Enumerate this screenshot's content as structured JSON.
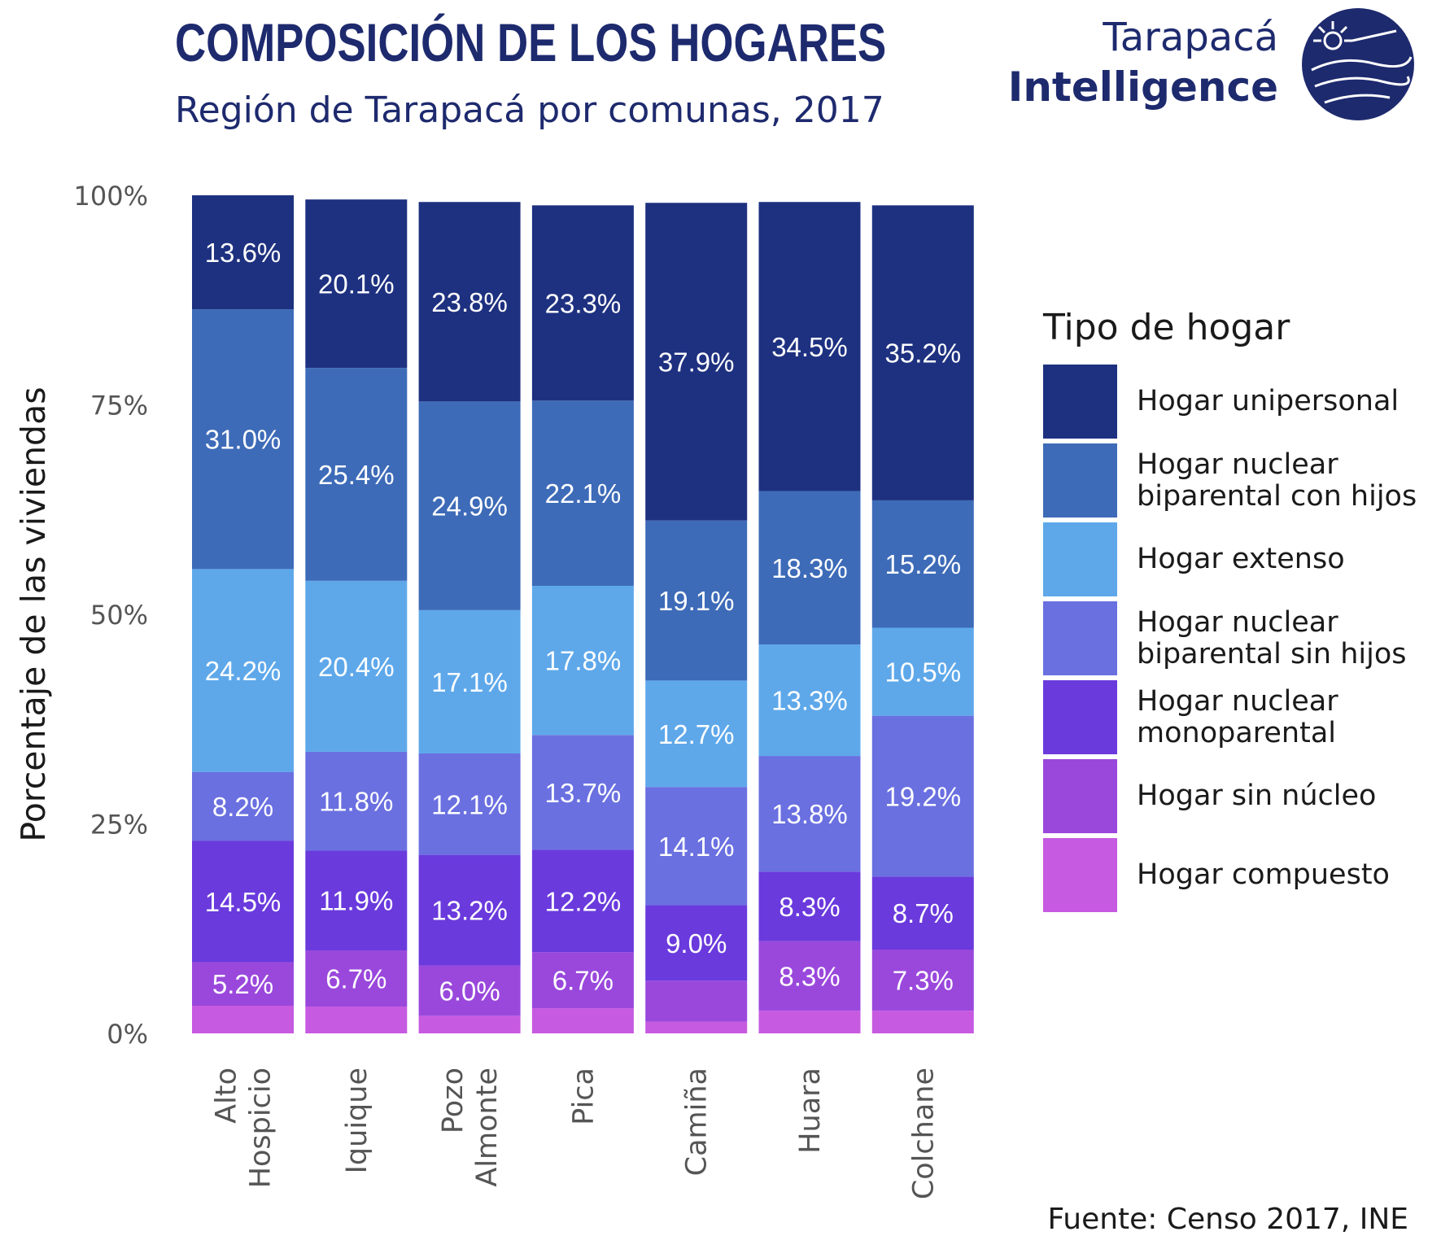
{
  "header": {
    "title": "COMPOSICIÓN DE LOS HOGARES",
    "subtitle": "Región de Tarapacá por comunas, 2017"
  },
  "brand": {
    "line1": "Tarapacá",
    "line2": "Intelligence",
    "color": "#1e2a6e"
  },
  "source": "Fuente: Censo 2017, INE",
  "legend": {
    "title": "Tipo de hogar",
    "items": [
      {
        "label": "Hogar unipersonal",
        "color": "#1e3180"
      },
      {
        "label": "Hogar nuclear\nbiparental con hijos",
        "color": "#3d6bb8"
      },
      {
        "label": "Hogar extenso",
        "color": "#5ea8ea"
      },
      {
        "label": "Hogar nuclear\nbiparental sin hijos",
        "color": "#6a70e0"
      },
      {
        "label": "Hogar nuclear\nmonoparental",
        "color": "#6a3add"
      },
      {
        "label": "Hogar sin núcleo",
        "color": "#9a48dc"
      },
      {
        "label": "Hogar compuesto",
        "color": "#c65ae0"
      }
    ]
  },
  "chart_data": {
    "type": "bar",
    "stacked": true,
    "ylabel": "Porcentaje de las viviendas",
    "ylim": [
      0,
      100
    ],
    "yticks": [
      "0%",
      "25%",
      "50%",
      "75%",
      "100%"
    ],
    "categories": [
      {
        "lines": [
          "Alto",
          "Hospicio"
        ]
      },
      {
        "lines": [
          "Iquique"
        ]
      },
      {
        "lines": [
          "Pozo",
          "Almonte"
        ]
      },
      {
        "lines": [
          "Pica"
        ]
      },
      {
        "lines": [
          "Camiña"
        ]
      },
      {
        "lines": [
          "Huara"
        ]
      },
      {
        "lines": [
          "Colchane"
        ]
      }
    ],
    "series": [
      {
        "name": "Hogar compuesto",
        "values": [
          3.3,
          3.2,
          2.1,
          3.0,
          1.4,
          2.7,
          2.7
        ],
        "labels": [
          "",
          "",
          "",
          "",
          "",
          "",
          ""
        ]
      },
      {
        "name": "Hogar sin núcleo",
        "values": [
          5.2,
          6.7,
          6.0,
          6.7,
          4.9,
          8.3,
          7.3
        ],
        "labels": [
          "5.2%",
          "6.7%",
          "6.0%",
          "6.7%",
          "",
          "8.3%",
          "7.3%"
        ]
      },
      {
        "name": "Hogar nuclear monoparental",
        "values": [
          14.5,
          11.9,
          13.2,
          12.2,
          9.0,
          8.3,
          8.7
        ],
        "labels": [
          "14.5%",
          "11.9%",
          "13.2%",
          "12.2%",
          "9.0%",
          "8.3%",
          "8.7%"
        ]
      },
      {
        "name": "Hogar nuclear biparental sin hijos",
        "values": [
          8.2,
          11.8,
          12.1,
          13.7,
          14.1,
          13.8,
          19.2
        ],
        "labels": [
          "8.2%",
          "11.8%",
          "12.1%",
          "13.7%",
          "14.1%",
          "13.8%",
          "19.2%"
        ]
      },
      {
        "name": "Hogar extenso",
        "values": [
          24.2,
          20.4,
          17.1,
          17.8,
          12.7,
          13.3,
          10.5
        ],
        "labels": [
          "24.2%",
          "20.4%",
          "17.1%",
          "17.8%",
          "12.7%",
          "13.3%",
          "10.5%"
        ]
      },
      {
        "name": "Hogar nuclear biparental con hijos",
        "values": [
          31.0,
          25.4,
          24.9,
          22.1,
          19.1,
          18.3,
          15.2
        ],
        "labels": [
          "31.0%",
          "25.4%",
          "24.9%",
          "22.1%",
          "19.1%",
          "18.3%",
          "15.2%"
        ]
      },
      {
        "name": "Hogar unipersonal",
        "values": [
          13.6,
          20.1,
          23.8,
          23.3,
          37.9,
          34.5,
          35.2
        ],
        "labels": [
          "13.6%",
          "20.1%",
          "23.8%",
          "23.3%",
          "37.9%",
          "34.5%",
          "35.2%"
        ]
      }
    ],
    "colors": [
      "#c65ae0",
      "#9a48dc",
      "#6a3add",
      "#6a70e0",
      "#5ea8ea",
      "#3d6bb8",
      "#1e3180"
    ],
    "legend_position": "right",
    "grid": false
  }
}
